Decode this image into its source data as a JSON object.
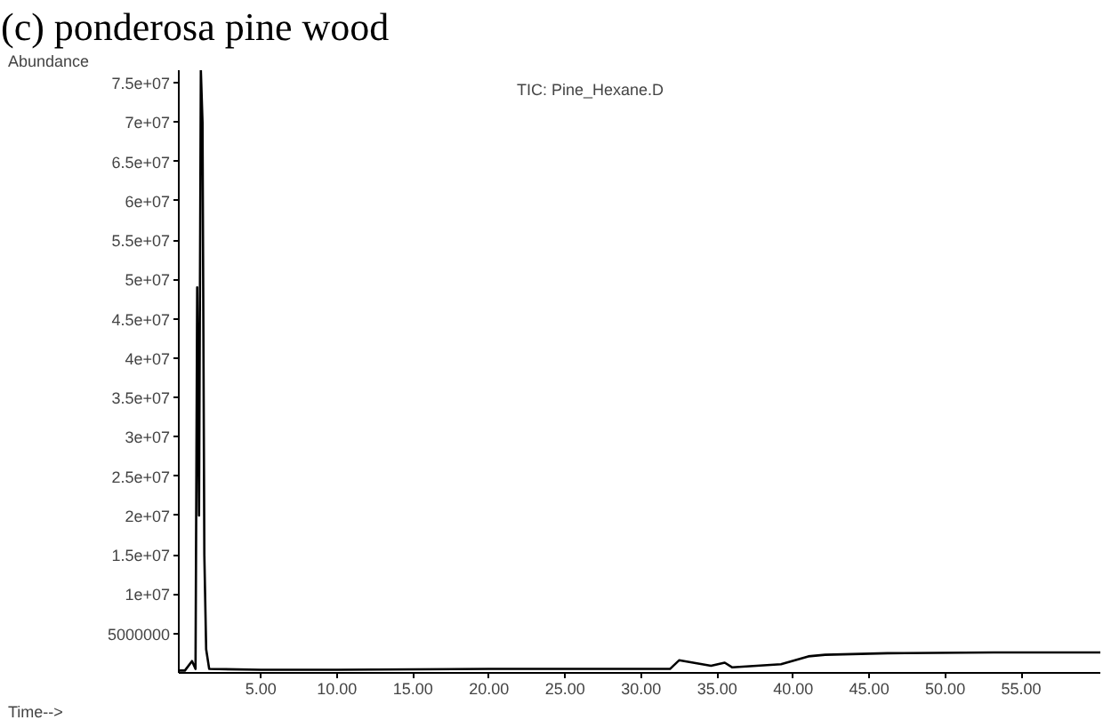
{
  "chart_data": {
    "type": "line",
    "title": "(c) ponderosa pine wood",
    "xlabel": "Time-->",
    "ylabel": "Abundance",
    "annotations": [
      "TIC: Pine_Hexane.D"
    ],
    "x": [
      -0.4,
      0.0,
      0.47,
      0.7,
      0.81,
      0.93,
      1.05,
      1.16,
      1.28,
      1.4,
      1.6,
      5.0,
      10.0,
      20.0,
      31.9,
      32.5,
      34.6,
      35.5,
      36.0,
      39.2,
      41.0,
      42.1,
      46.2,
      53.2,
      60.2
    ],
    "series": [
      {
        "color": "#000000",
        "values": [
          300000,
          300000,
          1500000,
          500000,
          49000000,
          20000000,
          76600000,
          70000000,
          15000000,
          3000000,
          500000,
          400000,
          400000,
          500000,
          500000,
          1600000,
          900000,
          1300000,
          700000,
          1100000,
          2100000,
          2300000,
          2500000,
          2600000,
          2600000
        ]
      }
    ],
    "xlim": [
      -0.4,
      60.2
    ],
    "ylim": [
      0,
      76600000
    ],
    "xticks": [
      {
        "value": 5,
        "label": "5.00"
      },
      {
        "value": 10,
        "label": "10.00"
      },
      {
        "value": 15,
        "label": "15.00"
      },
      {
        "value": 20,
        "label": "20.00"
      },
      {
        "value": 25,
        "label": "25.00"
      },
      {
        "value": 30,
        "label": "30.00"
      },
      {
        "value": 35,
        "label": "35.00"
      },
      {
        "value": 40,
        "label": "40.00"
      },
      {
        "value": 45,
        "label": "45.00"
      },
      {
        "value": 50,
        "label": "50.00"
      },
      {
        "value": 55,
        "label": "55.00"
      }
    ],
    "yticks": [
      5000000,
      {
        "value": 10000000,
        "label": "1e+07"
      },
      {
        "value": 15000000,
        "label": "1.5e+07"
      },
      {
        "value": 20000000,
        "label": "2e+07"
      },
      {
        "value": 25000000,
        "label": "2.5e+07"
      },
      {
        "value": 30000000,
        "label": "3e+07"
      },
      {
        "value": 35000000,
        "label": "3.5e+07"
      },
      {
        "value": 40000000,
        "label": "4e+07"
      },
      {
        "value": 45000000,
        "label": "4.5e+07"
      },
      {
        "value": 50000000,
        "label": "5e+07"
      },
      {
        "value": 55000000,
        "label": "5.5e+07"
      },
      {
        "value": 60000000,
        "label": "6e+07"
      },
      {
        "value": 65000000,
        "label": "6.5e+07"
      },
      {
        "value": 70000000,
        "label": "7e+07"
      },
      {
        "value": 75000000,
        "label": "7.5e+07"
      }
    ],
    "grid": false,
    "marker": "none",
    "line_style": "solid"
  }
}
